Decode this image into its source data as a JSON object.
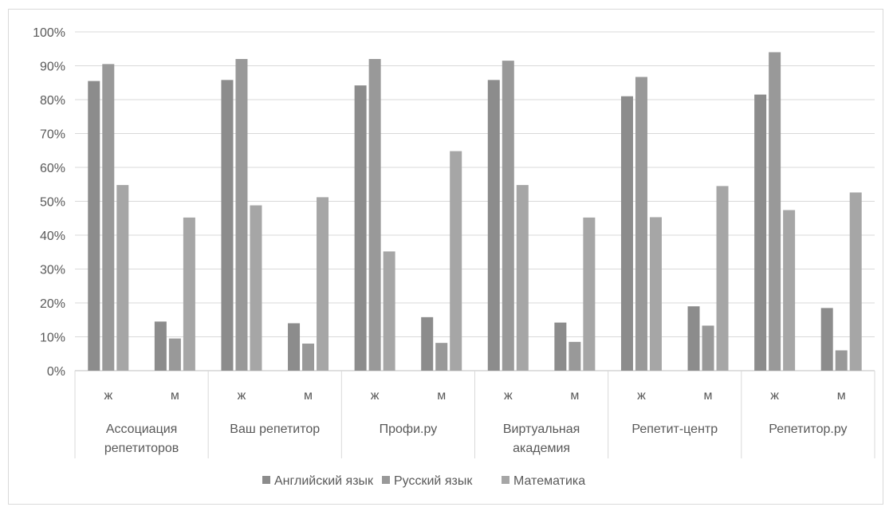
{
  "chart_data": {
    "type": "bar",
    "title": "",
    "xlabel": "",
    "ylabel": "",
    "ylim": [
      0,
      1
    ],
    "y_ticks": [
      "0%",
      "10%",
      "20%",
      "30%",
      "40%",
      "50%",
      "60%",
      "70%",
      "80%",
      "90%",
      "100%"
    ],
    "grid": true,
    "legend_position": "bottom",
    "groups": [
      {
        "lines": [
          "Ассоциация",
          "репетиторов"
        ]
      },
      {
        "lines": [
          "Ваш репетитор"
        ]
      },
      {
        "lines": [
          "Профи.ру"
        ]
      },
      {
        "lines": [
          "Виртуальная",
          "академия"
        ]
      },
      {
        "lines": [
          "Репетит-центр"
        ]
      },
      {
        "lines": [
          "Репетитор.ру"
        ]
      }
    ],
    "subcategories": [
      "ж",
      "м"
    ],
    "series": [
      {
        "name": "Английский язык",
        "color": "#8c8c8c",
        "values": [
          0.855,
          0.145,
          0.858,
          0.14,
          0.842,
          0.158,
          0.858,
          0.142,
          0.81,
          0.19,
          0.815,
          0.185
        ]
      },
      {
        "name": "Русский язык",
        "color": "#999999",
        "values": [
          0.905,
          0.095,
          0.92,
          0.08,
          0.92,
          0.082,
          0.915,
          0.085,
          0.867,
          0.133,
          0.94,
          0.06
        ]
      },
      {
        "name": "Математика",
        "color": "#a6a6a6",
        "values": [
          0.548,
          0.452,
          0.488,
          0.512,
          0.352,
          0.648,
          0.548,
          0.452,
          0.453,
          0.545,
          0.474,
          0.526
        ]
      }
    ]
  }
}
